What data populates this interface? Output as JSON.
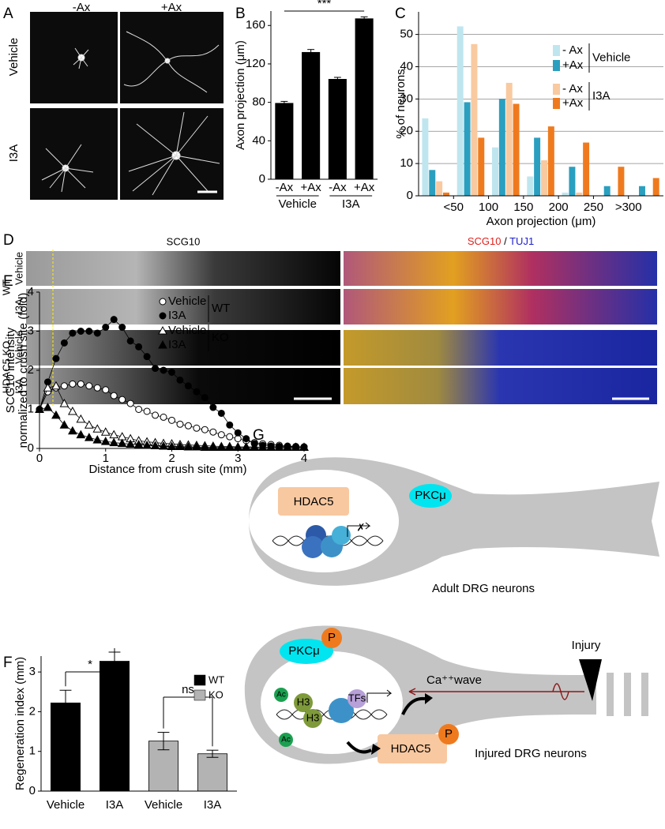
{
  "chart_data": [
    {
      "type": "bar",
      "label": "B",
      "ylabel": "Axon projection (μm)",
      "categories": [
        "-Ax",
        "+Ax",
        "-Ax",
        "+Ax"
      ],
      "groups": [
        "Vehicle",
        "I3A"
      ],
      "values": [
        79,
        132,
        104,
        167
      ],
      "errors": [
        2,
        3,
        2,
        2
      ],
      "color": "#000000",
      "ylim": [
        0,
        175
      ],
      "yticks": [
        0,
        40,
        80,
        120,
        160
      ],
      "annotations": [
        "***"
      ]
    },
    {
      "type": "histogram",
      "label": "C",
      "ylabel": "% of neurons",
      "xlabel": "Axon projection (μm)",
      "bins": [
        0,
        50,
        100,
        150,
        200,
        250,
        300,
        350
      ],
      "xlim": [
        0,
        350
      ],
      "xticks": [
        {
          "value": 50,
          "label": "<50"
        },
        100,
        150,
        200,
        250,
        {
          "value": 300,
          "label": ">300"
        }
      ],
      "ylim": [
        0,
        57
      ],
      "yticks": [
        0,
        10,
        20,
        30,
        40,
        50
      ],
      "grid": true,
      "legend_groups": [
        "Vehicle",
        "I3A"
      ],
      "series": [
        {
          "name": "- Ax",
          "color": "#bfe6ef",
          "values": [
            24,
            52.5,
            15,
            6,
            1,
            0,
            0
          ]
        },
        {
          "name": "+Ax",
          "color": "#2b9fbf",
          "values": [
            8,
            29,
            30,
            18,
            9,
            3,
            3
          ]
        },
        {
          "name": "- Ax",
          "color": "#f9c9a0",
          "values": [
            4.5,
            47,
            35,
            11,
            1,
            0,
            0
          ]
        },
        {
          "name": "+Ax",
          "color": "#ef7a1e",
          "values": [
            1,
            18,
            28.5,
            21.5,
            16.5,
            9,
            5.5
          ]
        }
      ]
    },
    {
      "type": "line",
      "label": "E",
      "ylabel": [
        "SCG10 intensity",
        "normalized to crush site (fold)"
      ],
      "xlabel": "Distance from crush site (mm)",
      "xlim": [
        0,
        4
      ],
      "ylim": [
        0,
        4
      ],
      "xticks": [
        0,
        1,
        2,
        3,
        4
      ],
      "yticks": [
        0,
        1,
        2,
        3,
        4
      ],
      "legend_groups": [
        "WT",
        "KO"
      ],
      "x": [
        0,
        0.125,
        0.25,
        0.375,
        0.5,
        0.625,
        0.75,
        0.875,
        1,
        1.125,
        1.25,
        1.375,
        1.5,
        1.625,
        1.75,
        1.875,
        2,
        2.125,
        2.25,
        2.375,
        2.5,
        2.625,
        2.75,
        2.875,
        3,
        3.125,
        3.25,
        3.375,
        3.5,
        3.625,
        3.75,
        3.875,
        4
      ],
      "series": [
        {
          "name": "Vehicle",
          "marker": "circle",
          "filled": false,
          "color": "#000000",
          "values": [
            1,
            1.45,
            1.55,
            1.6,
            1.65,
            1.65,
            1.6,
            1.55,
            1.5,
            1.35,
            1.25,
            1.15,
            1.0,
            0.95,
            0.85,
            0.8,
            0.72,
            0.62,
            0.58,
            0.52,
            0.48,
            0.42,
            0.35,
            0.3,
            0.25,
            0.2,
            0.15,
            0.12,
            0.1,
            0.08,
            0.06,
            0.05,
            0.04
          ]
        },
        {
          "name": "I3A",
          "marker": "circle",
          "filled": true,
          "color": "#000000",
          "values": [
            1,
            1.7,
            2.3,
            2.7,
            2.95,
            3.0,
            3.0,
            2.95,
            3.1,
            3.3,
            3.1,
            2.75,
            2.6,
            2.35,
            2.05,
            2.0,
            1.95,
            1.75,
            1.6,
            1.45,
            1.3,
            1.05,
            0.9,
            0.6,
            0.4,
            0.25,
            0.12,
            0.08,
            0.06,
            0.05,
            0.05,
            0.04,
            0.04
          ]
        },
        {
          "name": "Vehicle",
          "marker": "triangle",
          "filled": false,
          "color": "#000000",
          "values": [
            1,
            1.55,
            1.6,
            1.15,
            0.95,
            0.75,
            0.6,
            0.5,
            0.42,
            0.35,
            0.3,
            0.25,
            0.2,
            0.17,
            0.15,
            0.13,
            0.12,
            0.1,
            0.09,
            0.08,
            0.07,
            0.06,
            0.05,
            0.05,
            0.04,
            0.04,
            0.04,
            0.03,
            0.03,
            0.03,
            0.03,
            0.03,
            0.03
          ]
        },
        {
          "name": "I3A",
          "marker": "triangle",
          "filled": true,
          "color": "#000000",
          "values": [
            1,
            1.05,
            0.85,
            0.6,
            0.45,
            0.35,
            0.28,
            0.22,
            0.18,
            0.15,
            0.13,
            0.11,
            0.1,
            0.08,
            0.07,
            0.06,
            0.05,
            0.05,
            0.04,
            0.04,
            0.03,
            0.03,
            0.03,
            0.03,
            0.03,
            0.03,
            0.03,
            0.03,
            0.03,
            0.03,
            0.03,
            0.03,
            0.03
          ]
        }
      ]
    },
    {
      "type": "bar",
      "label": "F",
      "ylabel": "Regeneration index (mm)",
      "categories": [
        "Vehicle",
        "I3A",
        "Vehicle",
        "I3A"
      ],
      "values": [
        2.22,
        3.27,
        1.26,
        0.94
      ],
      "errors": [
        0.32,
        0.23,
        0.22,
        0.09
      ],
      "colors": [
        "#000000",
        "#000000",
        "#b3b3b3",
        "#b3b3b3"
      ],
      "legend": [
        {
          "name": "WT",
          "color": "#000000"
        },
        {
          "name": "KO",
          "color": "#b3b3b3"
        }
      ],
      "ylim": [
        0,
        3.4
      ],
      "yticks": [
        0,
        1,
        2,
        3
      ],
      "annotations": [
        "*",
        "ns"
      ]
    }
  ],
  "panels": {
    "A": {
      "label": "A",
      "columns": [
        "-Ax",
        "+Ax"
      ],
      "rows": [
        "Vehicle",
        "I3A"
      ]
    },
    "D": {
      "label": "D",
      "left_title": "SCG10",
      "right_title": [
        "SCG10",
        "/",
        "TUJ1"
      ],
      "rows": [
        "Vehicle",
        "I3A",
        "Vehicle",
        "I3A"
      ],
      "groups": [
        "WT",
        "HDAC5 KO"
      ]
    },
    "G": {
      "label": "G",
      "adult": {
        "hdac5": "HDAC5",
        "pkc": "PKCμ",
        "caption": "Adult DRG neurons"
      },
      "injured": {
        "pkc": "PKCμ",
        "p1": "P",
        "ac1": "Ac",
        "h3a": "H3",
        "h3b": "H3",
        "ac2": "Ac",
        "tfs": "TFs",
        "wave": "Ca⁺⁺wave",
        "injury": "Injury",
        "hdac5": "HDAC5",
        "p2": "P",
        "caption": "Injured DRG neurons"
      }
    }
  }
}
